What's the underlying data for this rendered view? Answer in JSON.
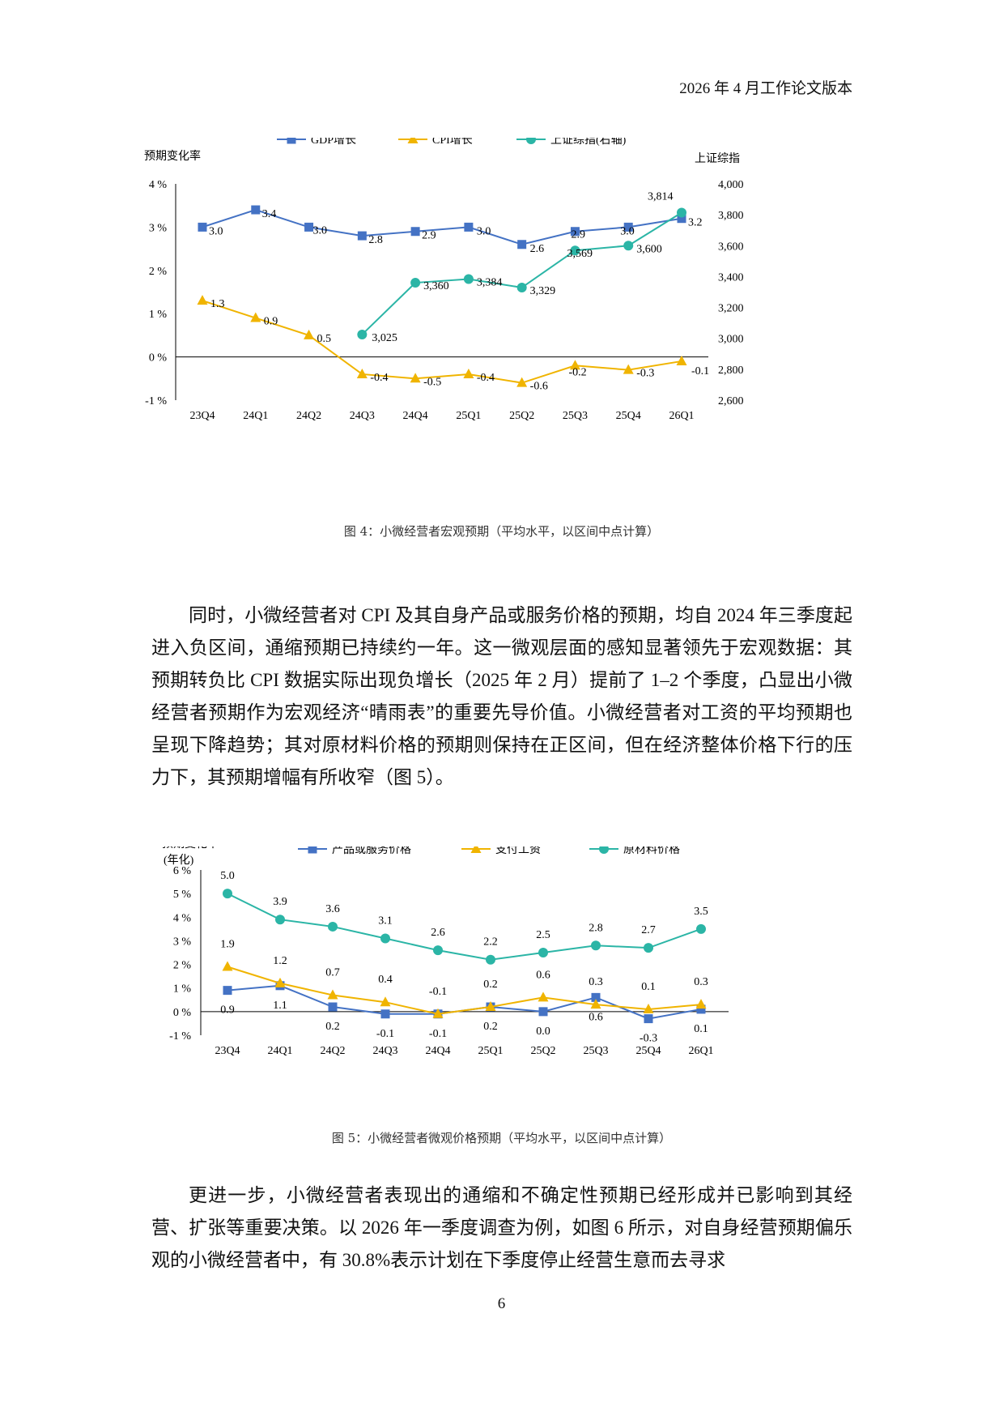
{
  "header": {
    "note": "2026 年 4 月工作论文版本"
  },
  "figure4": {
    "caption": "图 4：小微经营者宏观预期（平均水平，以区间中点计算）",
    "chart_data": {
      "type": "line",
      "ylabel_left": "预期变化率",
      "ylabel_right": "上证综指",
      "categories": [
        "23Q4",
        "24Q1",
        "24Q2",
        "24Q3",
        "24Q4",
        "25Q1",
        "25Q2",
        "25Q3",
        "25Q4",
        "26Q1"
      ],
      "ylim_left": [
        -1,
        4
      ],
      "yticks_left": [
        "-1 %",
        "0 %",
        "1 %",
        "2 %",
        "3 %",
        "4 %"
      ],
      "ylim_right": [
        2600,
        4000
      ],
      "yticks_right": [
        "2,600",
        "2,800",
        "3,000",
        "3,200",
        "3,400",
        "3,600",
        "3,800",
        "4,000"
      ],
      "legend_position": "top",
      "series": [
        {
          "name": "GDP增长",
          "axis": "left",
          "color": "#4472C4",
          "marker": "square",
          "values": [
            3.0,
            3.4,
            3.0,
            2.8,
            2.9,
            3.0,
            2.6,
            2.9,
            3.0,
            3.2
          ],
          "labels": [
            "3.0",
            "3.4",
            "3.0",
            "2.8",
            "2.9",
            "3.0",
            "2.6",
            "2.9",
            "3.0",
            "3.2"
          ]
        },
        {
          "name": "CPI增长",
          "axis": "left",
          "color": "#F0B400",
          "marker": "triangle",
          "values": [
            1.3,
            0.9,
            0.5,
            -0.4,
            -0.5,
            -0.4,
            -0.6,
            -0.2,
            -0.3,
            -0.1
          ],
          "labels": [
            "1.3",
            "0.9",
            "0.5",
            "-0.4",
            "-0.5",
            "-0.4",
            "-0.6",
            "-0.2",
            "-0.3",
            "-0.1"
          ]
        },
        {
          "name": "上证综指(右轴)",
          "axis": "right",
          "color": "#2BB5A6",
          "marker": "circle",
          "values": [
            null,
            null,
            null,
            3025,
            3360,
            3384,
            3329,
            3569,
            3600,
            3814
          ],
          "labels": [
            "",
            "",
            "",
            "3,025",
            "3,360",
            "3,384",
            "3,329",
            "3,569",
            "3,600",
            "3,814"
          ]
        }
      ]
    }
  },
  "paragraph1": "同时，小微经营者对 CPI 及其自身产品或服务价格的预期，均自 2024 年三季度起进入负区间，通缩预期已持续约一年。这一微观层面的感知显著领先于宏观数据：其预期转负比 CPI 数据实际出现负增长（2025 年 2 月）提前了 1–2 个季度，凸显出小微经营者预期作为宏观经济“晴雨表”的重要先导价值。小微经营者对工资的平均预期也呈现下降趋势；其对原材料价格的预期则保持在正区间，但在经济整体价格下行的压力下，其预期增幅有所收窄（图 5）。",
  "figure5": {
    "caption": "图 5：小微经营者微观价格预期（平均水平，以区间中点计算）",
    "chart_data": {
      "type": "line",
      "ylabel": "预期变化率",
      "ylabel_sub": "(年化)",
      "categories": [
        "23Q4",
        "24Q1",
        "24Q2",
        "24Q3",
        "24Q4",
        "25Q1",
        "25Q2",
        "25Q3",
        "25Q4",
        "26Q1"
      ],
      "ylim": [
        -1,
        6
      ],
      "yticks": [
        "-1 %",
        "0 %",
        "1 %",
        "2 %",
        "3 %",
        "4 %",
        "5 %",
        "6 %"
      ],
      "legend_position": "top",
      "series": [
        {
          "name": "产品或服务价格",
          "color": "#4472C4",
          "marker": "square",
          "values": [
            0.9,
            1.1,
            0.2,
            -0.1,
            -0.1,
            0.2,
            0.0,
            0.6,
            -0.3,
            0.1
          ],
          "labels": [
            "0.9",
            "1.1",
            "0.2",
            "-0.1",
            "-0.1",
            "0.2",
            "0.0",
            "0.6",
            "-0.3",
            "0.1"
          ]
        },
        {
          "name": "支付工资",
          "color": "#F0B400",
          "marker": "triangle",
          "values": [
            1.9,
            1.2,
            0.7,
            0.4,
            -0.1,
            0.2,
            0.6,
            0.3,
            0.1,
            0.3
          ],
          "labels": [
            "1.9",
            "1.2",
            "0.7",
            "0.4",
            "-0.1",
            "0.2",
            "0.6",
            "0.3",
            "0.1",
            "0.3"
          ]
        },
        {
          "name": "原材料价格",
          "color": "#2BB5A6",
          "marker": "circle",
          "values": [
            5.0,
            3.9,
            3.6,
            3.1,
            2.6,
            2.2,
            2.5,
            2.8,
            2.7,
            3.5
          ],
          "labels": [
            "5.0",
            "3.9",
            "3.6",
            "3.1",
            "2.6",
            "2.2",
            "2.5",
            "2.8",
            "2.7",
            "3.5"
          ]
        }
      ]
    }
  },
  "paragraph2": "更进一步，小微经营者表现出的通缩和不确定性预期已经形成并已影响到其经营、扩张等重要决策。以 2026 年一季度调查为例，如图 6 所示，对自身经营预期偏乐观的小微经营者中，有 30.8%表示计划在下季度停止经营生意而去寻求",
  "page_number": "6"
}
